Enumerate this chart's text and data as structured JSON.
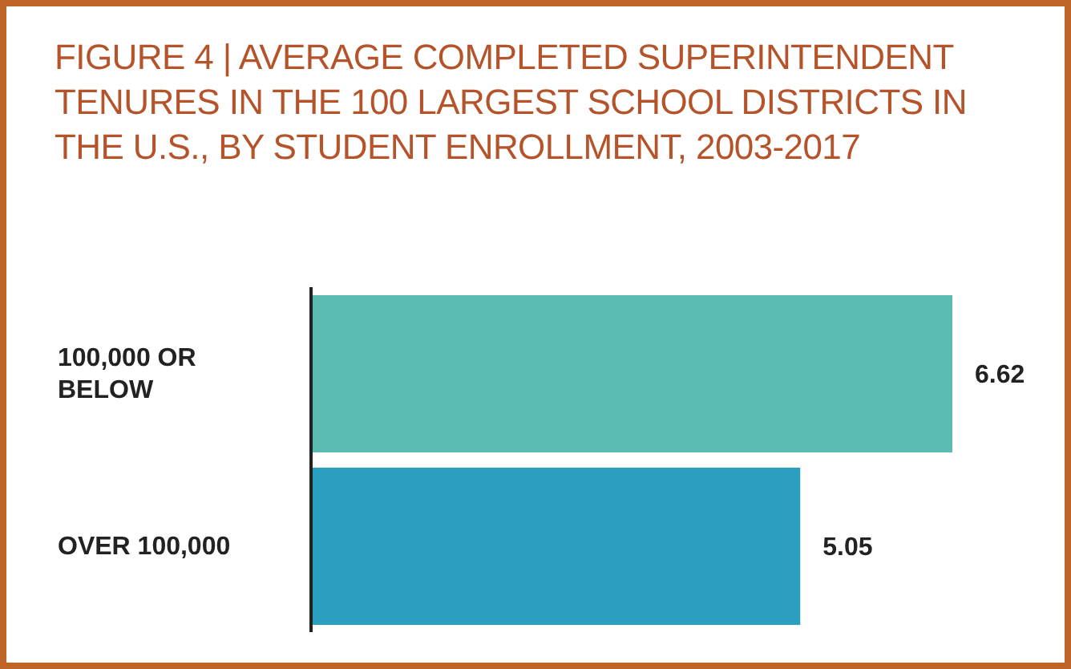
{
  "chart_data": {
    "type": "bar",
    "orientation": "horizontal",
    "title": "FIGURE 4 | AVERAGE COMPLETED SUPERINTENDENT TENURES IN THE 100 LARGEST SCHOOL DISTRICTS IN THE U.S., BY STUDENT ENROLLMENT, 2003-2017",
    "categories": [
      "100,000 OR BELOW",
      "OVER 100,000"
    ],
    "values": [
      6.62,
      5.05
    ],
    "colors": [
      "#5bbcb4",
      "#2a9fc0"
    ],
    "data_labels": true
  }
}
